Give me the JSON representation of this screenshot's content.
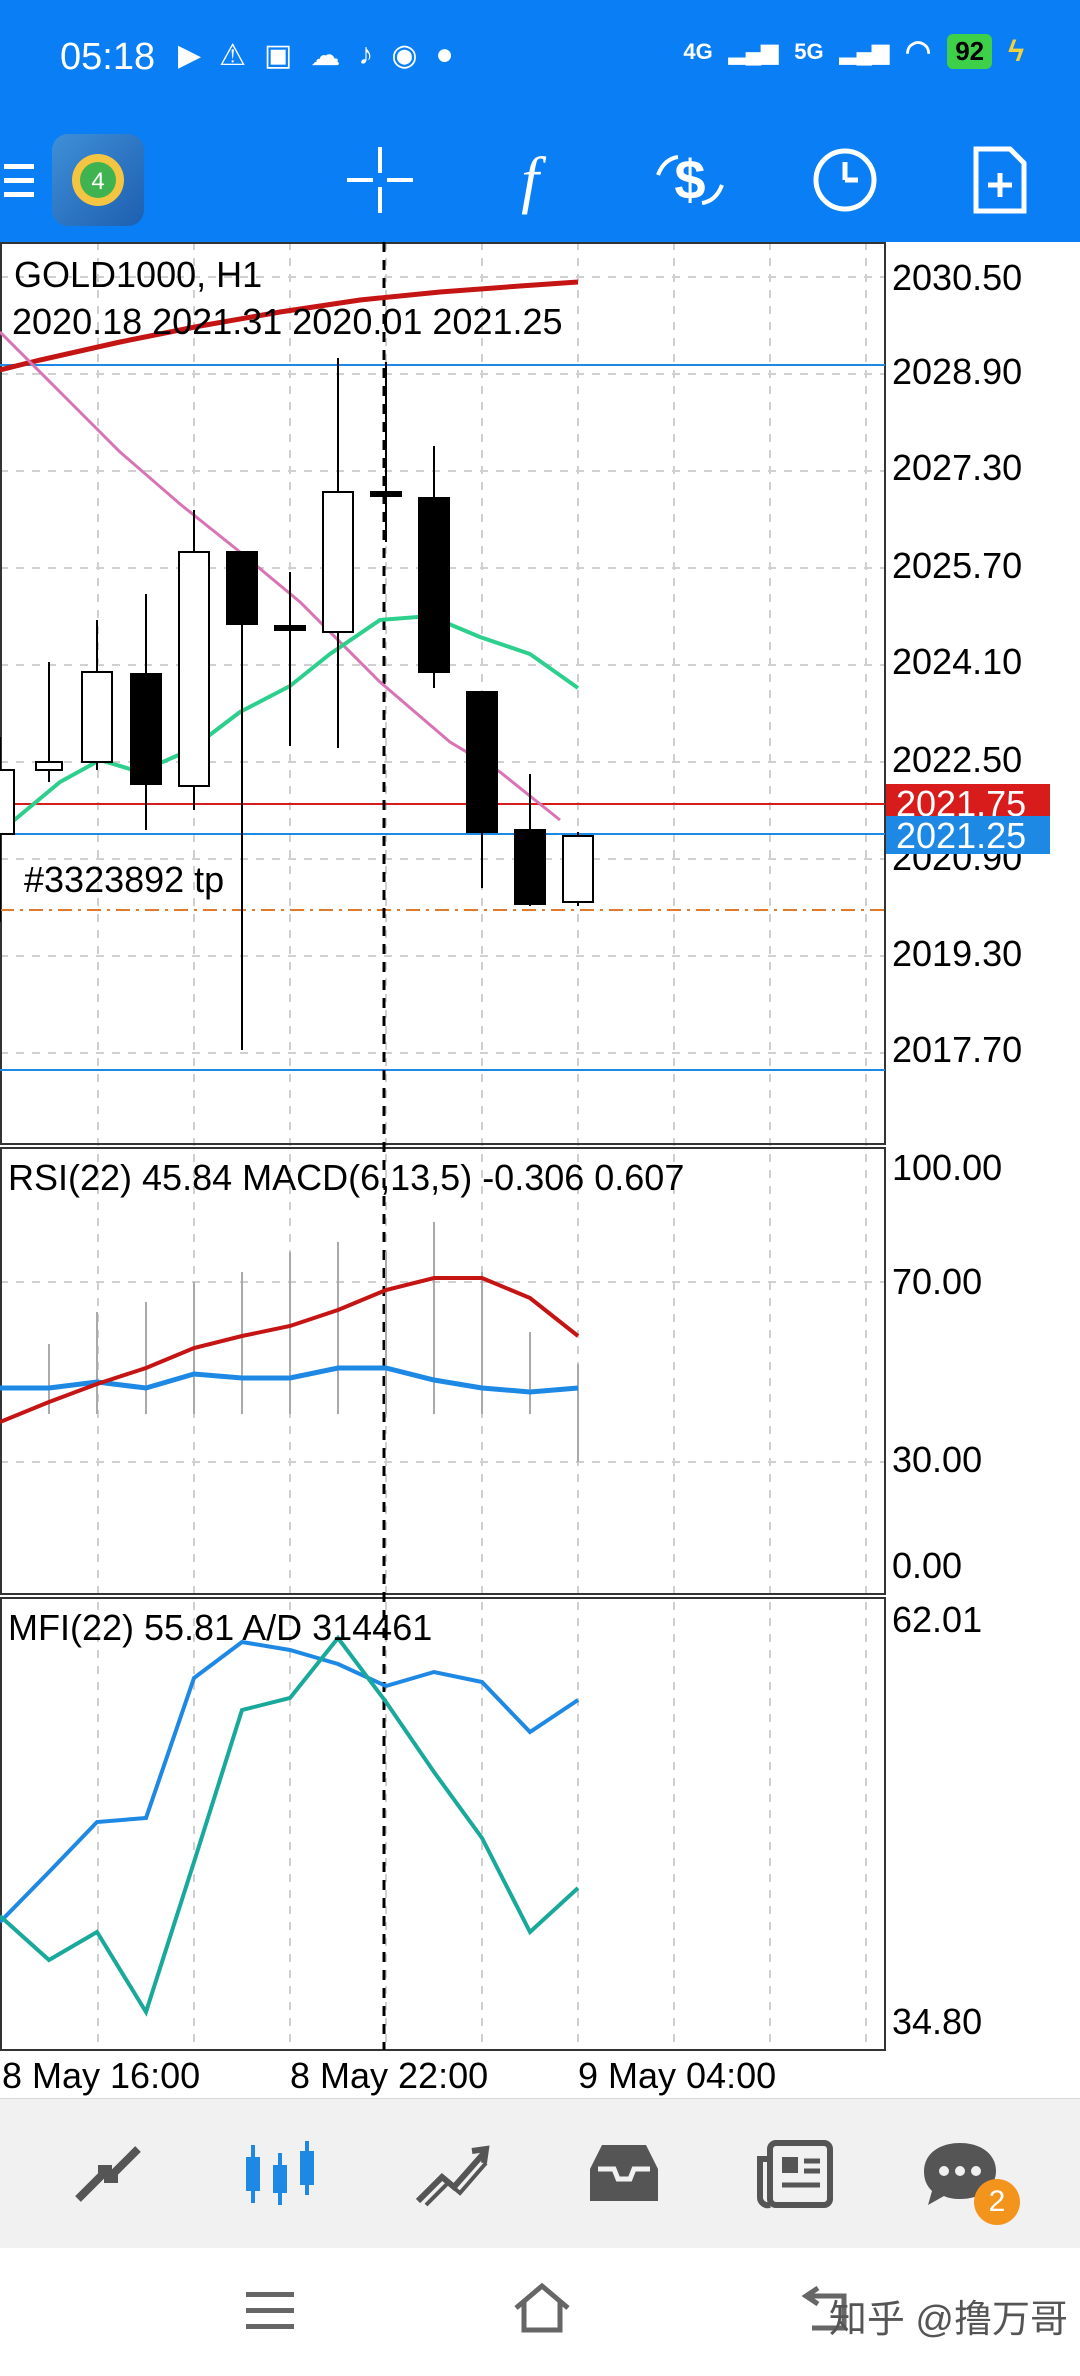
{
  "status_bar": {
    "time": "05:18",
    "network_1": "4G",
    "network_2": "5G",
    "battery": "92"
  },
  "toolbar": {
    "menu_icon": "menu-icon",
    "app_icon": "metatrader-icon",
    "items": [
      "crosshair-icon",
      "function-icon",
      "trade-symbol-icon",
      "timeframe-clock-icon",
      "new-order-icon"
    ]
  },
  "chart": {
    "symbol_info": "GOLD1000, H1",
    "ohlc": "2020.18 2021.31 2020.01 2021.25",
    "order_label": "#3323892 tp",
    "price_axis": [
      "2030.50",
      "2028.90",
      "2027.30",
      "2025.70",
      "2024.10",
      "2022.50",
      "2020.90",
      "2019.30",
      "2017.70"
    ],
    "ask_price": "2021.75",
    "bid_price": "2021.25",
    "time_axis": [
      "8 May 16:00",
      "8 May 22:00",
      "9 May 04:00"
    ],
    "colors": {
      "ask": "#d81b1b",
      "bid": "#1e88e5",
      "ma_red": "#c51414",
      "ma_pink": "#d874b4",
      "ma_green": "#2ccf8c"
    }
  },
  "indicator_1": {
    "label": "RSI(22) 45.84 MACD(6,13,5)  -0.306 0.607",
    "axis": [
      "100.00",
      "70.00",
      "30.00",
      "0.00"
    ]
  },
  "indicator_2": {
    "label": "MFI(22) 55.81 A/D 314461",
    "axis": [
      "62.01",
      "34.80"
    ]
  },
  "bottom_nav": {
    "items": [
      "quotes-icon",
      "chart-icon",
      "trade-icon",
      "history-icon",
      "news-icon",
      "chat-icon"
    ],
    "chat_badge": "2"
  },
  "system_nav": [
    "menu-nav-icon",
    "home-nav-icon",
    "back-nav-icon"
  ],
  "watermark": "知乎 @撸万哥"
}
